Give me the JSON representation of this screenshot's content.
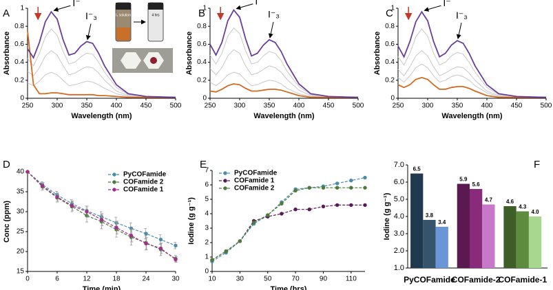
{
  "chart_data": [
    {
      "type": "line",
      "label": "A",
      "xlabel": "Wavelength (nm)",
      "ylabel": "Absorbance",
      "x": [
        250,
        260,
        270,
        280,
        290,
        300,
        310,
        320,
        330,
        340,
        350,
        360,
        370,
        380,
        400,
        420,
        450,
        500
      ],
      "series": [
        {
          "color": "#c8c8c8",
          "values": [
            0.44,
            0.36,
            0.5,
            0.68,
            0.77,
            0.7,
            0.52,
            0.38,
            0.4,
            0.46,
            0.5,
            0.49,
            0.4,
            0.29,
            0.12,
            0.04,
            0.02,
            0.01
          ]
        },
        {
          "color": "#c8c8c8",
          "values": [
            0.3,
            0.25,
            0.34,
            0.47,
            0.53,
            0.48,
            0.36,
            0.26,
            0.28,
            0.32,
            0.35,
            0.34,
            0.28,
            0.2,
            0.08,
            0.03,
            0.01,
            0.01
          ]
        },
        {
          "color": "#c8c8c8",
          "values": [
            0.17,
            0.14,
            0.19,
            0.26,
            0.29,
            0.26,
            0.2,
            0.14,
            0.15,
            0.17,
            0.19,
            0.18,
            0.15,
            0.11,
            0.05,
            0.02,
            0.01,
            0.01
          ]
        },
        {
          "color": "#d2691e",
          "values": [
            0.75,
            0.15,
            0.05,
            0.05,
            0.06,
            0.06,
            0.05,
            0.04,
            0.04,
            0.04,
            0.04,
            0.04,
            0.03,
            0.03,
            0.02,
            0.01,
            0.01,
            0.01
          ]
        },
        {
          "color": "#6a3d9a",
          "values": [
            0.55,
            0.45,
            0.62,
            0.85,
            0.96,
            0.88,
            0.65,
            0.48,
            0.5,
            0.58,
            0.63,
            0.61,
            0.5,
            0.36,
            0.15,
            0.05,
            0.02,
            0.01
          ]
        }
      ],
      "xlim": [
        250,
        500
      ],
      "xticks": [
        250,
        300,
        350,
        400,
        450,
        500
      ],
      "ylim": [
        0,
        1
      ],
      "yticks": [
        0,
        0.2,
        0.4,
        0.6,
        0.8,
        1
      ],
      "annotations": [
        "I⁻",
        "I⁻₃"
      ],
      "inset_labels": [
        "I₂ solution",
        "4 hrs"
      ]
    },
    {
      "type": "line",
      "label": "B",
      "xlabel": "Wavelength (nm)",
      "ylabel": "Absorbance",
      "x": [
        250,
        260,
        270,
        280,
        290,
        300,
        310,
        320,
        330,
        340,
        350,
        360,
        370,
        380,
        400,
        420,
        450,
        500
      ],
      "series": [
        {
          "color": "#c8c8c8",
          "values": [
            0.48,
            0.38,
            0.5,
            0.69,
            0.78,
            0.72,
            0.53,
            0.38,
            0.4,
            0.47,
            0.52,
            0.5,
            0.42,
            0.3,
            0.13,
            0.04,
            0.02,
            0.01
          ]
        },
        {
          "color": "#c8c8c8",
          "values": [
            0.33,
            0.26,
            0.34,
            0.47,
            0.54,
            0.5,
            0.36,
            0.26,
            0.28,
            0.32,
            0.36,
            0.34,
            0.29,
            0.21,
            0.09,
            0.03,
            0.01,
            0.01
          ]
        },
        {
          "color": "#c8c8c8",
          "values": [
            0.18,
            0.14,
            0.19,
            0.26,
            0.29,
            0.27,
            0.2,
            0.14,
            0.15,
            0.18,
            0.2,
            0.19,
            0.16,
            0.11,
            0.05,
            0.02,
            0.01,
            0.01
          ]
        },
        {
          "color": "#d2691e",
          "values": [
            0.08,
            0.07,
            0.1,
            0.14,
            0.16,
            0.15,
            0.11,
            0.08,
            0.08,
            0.09,
            0.1,
            0.1,
            0.09,
            0.07,
            0.03,
            0.01,
            0.01,
            0.01
          ]
        },
        {
          "color": "#6a3d9a",
          "values": [
            0.6,
            0.48,
            0.62,
            0.86,
            0.98,
            0.9,
            0.66,
            0.47,
            0.5,
            0.59,
            0.65,
            0.62,
            0.52,
            0.38,
            0.16,
            0.05,
            0.02,
            0.01
          ]
        }
      ],
      "xlim": [
        250,
        500
      ],
      "xticks": [
        250,
        300,
        350,
        400,
        450,
        500
      ],
      "ylim": [
        0,
        1
      ],
      "yticks": [
        0,
        0.2,
        0.4,
        0.6,
        0.8,
        1
      ],
      "annotations": [
        "I⁻",
        "I⁻₃"
      ]
    },
    {
      "type": "line",
      "label": "C",
      "xlabel": "Wavelength (nm)",
      "ylabel": "Absorbance",
      "x": [
        250,
        260,
        270,
        280,
        290,
        300,
        310,
        320,
        330,
        340,
        350,
        360,
        370,
        380,
        400,
        420,
        450,
        500
      ],
      "series": [
        {
          "color": "#c8c8c8",
          "values": [
            0.46,
            0.37,
            0.5,
            0.68,
            0.77,
            0.69,
            0.5,
            0.37,
            0.4,
            0.47,
            0.51,
            0.49,
            0.4,
            0.29,
            0.12,
            0.04,
            0.02,
            0.01
          ]
        },
        {
          "color": "#c8c8c8",
          "values": [
            0.32,
            0.25,
            0.35,
            0.47,
            0.53,
            0.47,
            0.35,
            0.25,
            0.28,
            0.32,
            0.35,
            0.34,
            0.28,
            0.2,
            0.08,
            0.03,
            0.01,
            0.01
          ]
        },
        {
          "color": "#c8c8c8",
          "values": [
            0.23,
            0.18,
            0.25,
            0.34,
            0.38,
            0.34,
            0.25,
            0.18,
            0.2,
            0.24,
            0.26,
            0.24,
            0.2,
            0.14,
            0.06,
            0.02,
            0.01,
            0.01
          ]
        },
        {
          "color": "#d2691e",
          "values": [
            0.15,
            0.12,
            0.15,
            0.21,
            0.23,
            0.21,
            0.15,
            0.1,
            0.1,
            0.12,
            0.13,
            0.13,
            0.11,
            0.08,
            0.03,
            0.01,
            0.01,
            0.01
          ]
        },
        {
          "color": "#6a3d9a",
          "values": [
            0.58,
            0.46,
            0.63,
            0.85,
            0.96,
            0.86,
            0.63,
            0.46,
            0.5,
            0.59,
            0.64,
            0.61,
            0.5,
            0.36,
            0.15,
            0.05,
            0.02,
            0.01
          ]
        }
      ],
      "xlim": [
        250,
        500
      ],
      "xticks": [
        250,
        300,
        350,
        400,
        450,
        500
      ],
      "ylim": [
        0,
        1
      ],
      "yticks": [
        0,
        0.2,
        0.4,
        0.6,
        0.8,
        1
      ],
      "annotations": [
        "I⁻",
        "I⁻₃"
      ]
    },
    {
      "type": "line",
      "label": "D",
      "xlabel": "Time (min)",
      "ylabel": "Conc (ppm)",
      "x": [
        0,
        3,
        6,
        9,
        12,
        15,
        18,
        21,
        24,
        27,
        30
      ],
      "series": [
        {
          "name": "PyCOFamide",
          "color": "#4a8ea8",
          "values": [
            40,
            36.8,
            34.2,
            32,
            30.2,
            28.7,
            27.2,
            25.8,
            24.5,
            23,
            21.5
          ],
          "errors": [
            0,
            0.7,
            0.9,
            1,
            1.2,
            1.3,
            1.4,
            1.4,
            1.3,
            1.2,
            0.8
          ]
        },
        {
          "name": "COFamide 2",
          "color": "#4e7a3a",
          "values": [
            40,
            36.3,
            33.5,
            31.3,
            29,
            27.5,
            25.5,
            23.6,
            22.2,
            20.5,
            18.2
          ],
          "errors": [
            0,
            0.9,
            1.1,
            1.3,
            1.6,
            1.8,
            1.9,
            2,
            1.8,
            1.5,
            0.8
          ]
        },
        {
          "name": "COFamide 1",
          "color": "#a0308a",
          "values": [
            40,
            36.5,
            33.7,
            31.5,
            30,
            28,
            26,
            24,
            22,
            20.8,
            18
          ],
          "errors": [
            0,
            0.8,
            1,
            1.2,
            1.4,
            1.5,
            1.6,
            1.6,
            1.5,
            1.3,
            0.7
          ]
        }
      ],
      "xlim": [
        0,
        30
      ],
      "xticks": [
        0,
        6,
        12,
        18,
        24,
        30
      ],
      "ylim": [
        15,
        40
      ],
      "yticks": [
        15,
        20,
        25,
        30,
        35,
        40
      ],
      "markers": true,
      "dashed": true,
      "legend": "top-right"
    },
    {
      "type": "line",
      "label": "E",
      "xlabel": "Time (hrs)",
      "ylabel": "Iodine (g g⁻¹)",
      "x": [
        10,
        20,
        30,
        40,
        50,
        60,
        70,
        80,
        90,
        100,
        110,
        120
      ],
      "series": [
        {
          "name": "PyCOFamide",
          "color": "#4a8ea8",
          "values": [
            0.7,
            1.3,
            2.1,
            3.3,
            3.9,
            4.8,
            5.7,
            5.8,
            5.9,
            6.1,
            6.3,
            6.5
          ]
        },
        {
          "name": "COFamide 1",
          "color": "#5a1a5a",
          "values": [
            0.8,
            1.4,
            2.1,
            3.5,
            3.8,
            4.0,
            4.3,
            4.3,
            4.5,
            4.6,
            4.6,
            4.6
          ]
        },
        {
          "name": "COFamide 2",
          "color": "#4e7a3a",
          "values": [
            0.8,
            1.4,
            2.1,
            3.4,
            3.9,
            4.7,
            5.6,
            5.8,
            5.8,
            5.8,
            5.8,
            5.8
          ]
        }
      ],
      "xlim": [
        10,
        120
      ],
      "xticks": [
        10,
        30,
        50,
        70,
        90,
        110
      ],
      "ylim": [
        0,
        7
      ],
      "yticks": [
        0,
        1,
        2,
        3,
        4,
        5,
        6,
        7
      ],
      "markers": true,
      "dashed": true,
      "legend": "top-left"
    },
    {
      "type": "bar",
      "label": "F",
      "ylabel": "Iodine (g g⁻¹)",
      "categories": [
        "PyCOFamide",
        "COFamide-2",
        "COFamide-1"
      ],
      "values": [
        [
          6.5,
          3.8,
          3.4
        ],
        [
          5.9,
          5.6,
          4.7
        ],
        [
          4.6,
          4.3,
          4.0
        ]
      ],
      "value_labels": [
        [
          "6.5",
          "3.8",
          "3.4"
        ],
        [
          "5.9",
          "5.6",
          "4.7"
        ],
        [
          "4.6",
          "4.3",
          "4.0"
        ]
      ],
      "colors": [
        [
          "#1f3a4f",
          "#37546d",
          "#6a96d8"
        ],
        [
          "#5a1a50",
          "#8a2a7a",
          "#c878c8"
        ],
        [
          "#3e5e28",
          "#5e8c3e",
          "#a8d890"
        ]
      ],
      "ylim": [
        1,
        7
      ],
      "yticks": [
        {
          "value": 1,
          "label": "1.0"
        },
        {
          "value": 2,
          "label": "2.0"
        },
        {
          "value": 3,
          "label": "3.0"
        },
        {
          "value": 4,
          "label": "4.0"
        },
        {
          "value": 5,
          "label": "5.0"
        },
        {
          "value": 6,
          "label": "6.0"
        },
        {
          "value": 7,
          "label": "7.0"
        }
      ]
    }
  ]
}
